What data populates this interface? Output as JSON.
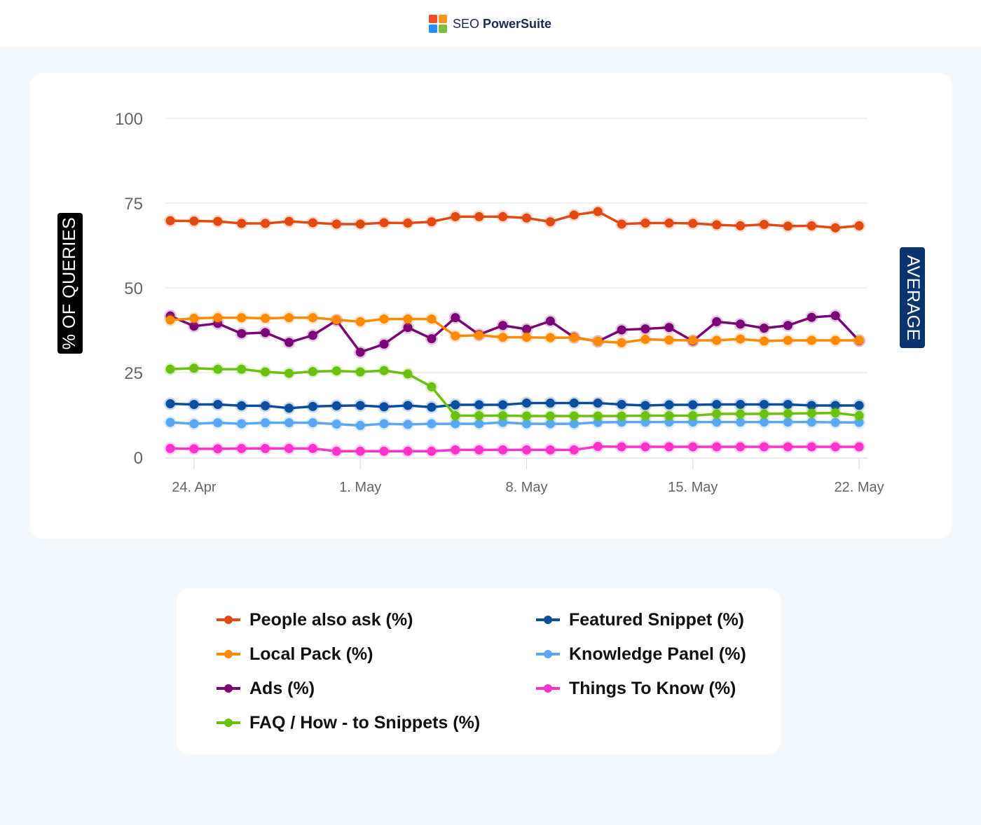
{
  "brand": {
    "prefix": "SEO",
    "name": "PowerSuite",
    "logo_colors": [
      "#f04e23",
      "#f7941d",
      "#2b8ef2",
      "#7ac143"
    ]
  },
  "side_labels": {
    "left": "% OF QUERIES",
    "right": "AVERAGE"
  },
  "chart_data": {
    "type": "line",
    "ylim": [
      0,
      100
    ],
    "y_ticks": [
      0,
      25,
      50,
      75,
      100
    ],
    "x_start": "2023-04-23",
    "x_tick_labels": [
      {
        "label": "24. Apr",
        "date": "2023-04-24"
      },
      {
        "label": "1. May",
        "date": "2023-05-01"
      },
      {
        "label": "8. May",
        "date": "2023-05-08"
      },
      {
        "label": "15. May",
        "date": "2023-05-15"
      },
      {
        "label": "22. May",
        "date": "2023-05-22"
      }
    ],
    "grid": true,
    "legend_position": "bottom",
    "series": [
      {
        "name": "People also ask (%)",
        "color": "#e34a12",
        "values": [
          69.8,
          69.7,
          69.6,
          69.0,
          69.0,
          69.6,
          69.2,
          68.8,
          68.8,
          69.2,
          69.1,
          69.5,
          71.0,
          71.0,
          71.0,
          70.6,
          69.5,
          71.5,
          72.5,
          68.8,
          69.1,
          69.1,
          69.0,
          68.6,
          68.3,
          68.7,
          68.2,
          68.3,
          67.7,
          68.3
        ]
      },
      {
        "name": "Local Pack (%)",
        "color": "#ff8a00",
        "values": [
          40.5,
          41.0,
          41.2,
          41.2,
          41.0,
          41.2,
          41.2,
          40.6,
          40.0,
          40.8,
          40.8,
          40.8,
          35.8,
          36.0,
          35.4,
          35.4,
          35.3,
          35.3,
          34.2,
          33.8,
          34.8,
          34.6,
          34.5,
          34.5,
          34.9,
          34.3,
          34.5,
          34.5,
          34.5,
          34.5
        ]
      },
      {
        "name": "Ads (%)",
        "color": "#7b0577",
        "values": [
          41.7,
          38.7,
          39.5,
          36.5,
          36.8,
          33.9,
          36.0,
          40.4,
          31.0,
          33.4,
          38.3,
          35.0,
          41.2,
          36.2,
          38.9,
          37.8,
          40.2,
          35.4,
          34.2,
          37.6,
          37.9,
          38.3,
          34.3,
          40.0,
          39.3,
          38.1,
          38.9,
          41.3,
          41.8,
          34.4
        ]
      },
      {
        "name": "FAQ / How - to Snippets (%)",
        "color": "#6cc00f",
        "values": [
          26.0,
          26.3,
          26.0,
          26.0,
          25.2,
          24.8,
          25.3,
          25.5,
          25.2,
          25.6,
          24.6,
          20.8,
          12.3,
          12.3,
          12.3,
          12.2,
          12.2,
          12.2,
          12.2,
          12.2,
          12.3,
          12.3,
          12.3,
          12.8,
          12.8,
          12.8,
          12.9,
          13.0,
          13.1,
          12.3
        ]
      },
      {
        "name": "Featured Snippet (%)",
        "color": "#0a4f9e",
        "values": [
          15.8,
          15.6,
          15.6,
          15.2,
          15.2,
          14.5,
          15.0,
          15.2,
          15.3,
          14.9,
          15.3,
          14.8,
          15.5,
          15.5,
          15.5,
          16.0,
          16.0,
          16.0,
          16.0,
          15.6,
          15.3,
          15.5,
          15.5,
          15.6,
          15.6,
          15.6,
          15.6,
          15.3,
          15.3,
          15.3
        ]
      },
      {
        "name": "Knowledge Panel (%)",
        "color": "#5aa8f5",
        "values": [
          10.3,
          9.9,
          10.2,
          9.9,
          10.2,
          10.2,
          10.2,
          9.8,
          9.4,
          9.9,
          9.7,
          9.9,
          9.9,
          9.9,
          10.3,
          9.9,
          9.9,
          9.9,
          10.3,
          10.4,
          10.4,
          10.4,
          10.4,
          10.4,
          10.4,
          10.4,
          10.4,
          10.4,
          10.3,
          10.3
        ]
      },
      {
        "name": "Things To Know (%)",
        "color": "#ff33cc",
        "values": [
          2.6,
          2.5,
          2.5,
          2.6,
          2.6,
          2.6,
          2.6,
          1.8,
          1.8,
          1.8,
          1.8,
          1.8,
          2.2,
          2.2,
          2.2,
          2.2,
          2.2,
          2.2,
          3.2,
          3.1,
          3.1,
          3.1,
          3.1,
          3.1,
          3.1,
          3.1,
          3.1,
          3.1,
          3.1,
          3.1
        ]
      }
    ]
  }
}
